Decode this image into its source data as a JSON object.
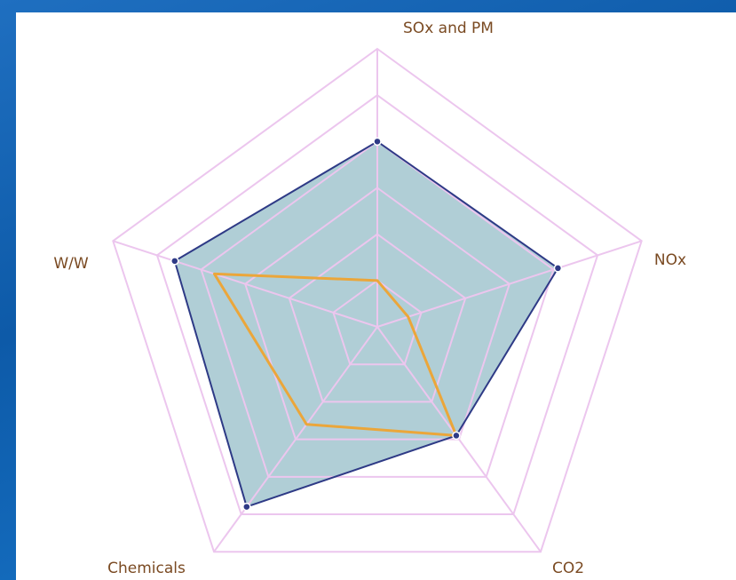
{
  "chart_data": {
    "type": "radar",
    "categories": [
      "SOx and PM",
      "NOx",
      "CO2",
      "Chemicals",
      "W/W"
    ],
    "rlim": [
      0,
      6
    ],
    "rticks": [
      1,
      2,
      3,
      4,
      5,
      6
    ],
    "grid_color": "#ecc6ee",
    "series": [
      {
        "color": "#2e3a86",
        "fill": "#6fa6b4",
        "markers": true,
        "values": [
          4,
          4.1,
          2.9,
          4.8,
          4.6
        ]
      },
      {
        "color": "#eba63a",
        "values": [
          1,
          0.7,
          2.9,
          2.6,
          3.7
        ]
      }
    ]
  }
}
